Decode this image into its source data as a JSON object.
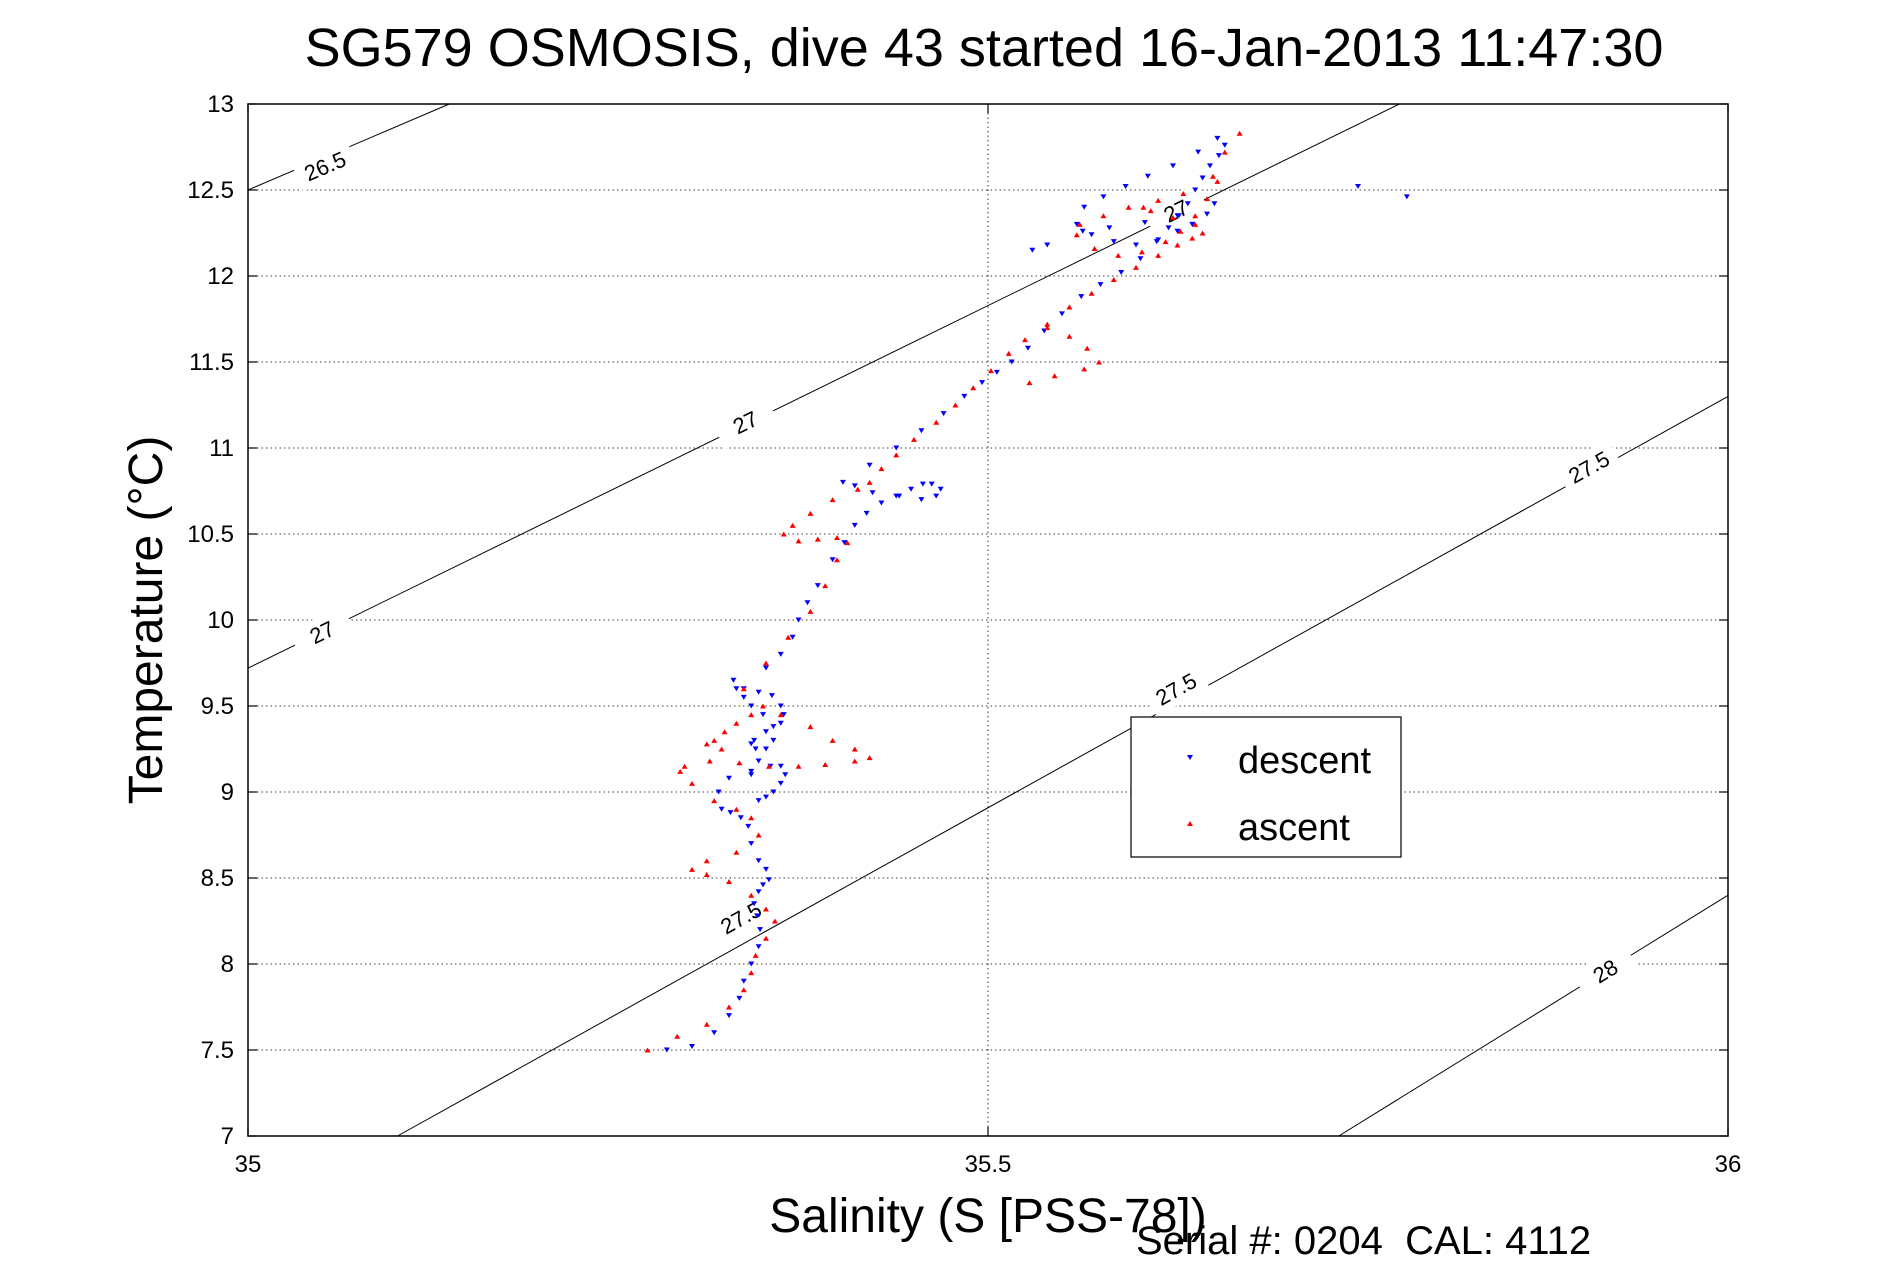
{
  "chart_data": {
    "type": "scatter",
    "title": "SG579 OSMOSIS, dive 43 started 16-Jan-2013 11:47:30",
    "xlabel": "Salinity (S [PSS-78])",
    "ylabel": "Temperature (°C)",
    "footer": "Serial #: 0204  CAL: 4112",
    "xlim": [
      35,
      36
    ],
    "ylim": [
      7,
      13
    ],
    "xticks": [
      35,
      35.5,
      36
    ],
    "xtick_labels": [
      "35",
      "35.5",
      "36"
    ],
    "yticks": [
      7,
      7.5,
      8,
      8.5,
      9,
      9.5,
      10,
      10.5,
      11,
      11.5,
      12,
      12.5,
      13
    ],
    "ytick_labels": [
      "7",
      "7.5",
      "8",
      "8.5",
      "9",
      "9.5",
      "10",
      "10.5",
      "11",
      "11.5",
      "12",
      "12.5",
      "13"
    ],
    "grid": true,
    "legend_position": "center-right",
    "contours": [
      {
        "value": "26.5",
        "points": [
          [
            35.0,
            12.5
          ],
          [
            35.136,
            13.0
          ]
        ],
        "labels": [
          {
            "x": 35.052,
            "y": 12.64
          }
        ]
      },
      {
        "value": "27",
        "points": [
          [
            35.0,
            9.72
          ],
          [
            35.778,
            13.0
          ]
        ],
        "labels": [
          {
            "x": 35.05,
            "y": 9.93
          },
          {
            "x": 35.336,
            "y": 11.15
          },
          {
            "x": 35.627,
            "y": 12.38
          }
        ]
      },
      {
        "value": "27.5",
        "points": [
          [
            35.101,
            7.0
          ],
          [
            36.0,
            11.3
          ]
        ],
        "labels": [
          {
            "x": 35.333,
            "y": 8.27
          },
          {
            "x": 35.627,
            "y": 9.6
          },
          {
            "x": 35.906,
            "y": 10.89
          }
        ]
      },
      {
        "value": "28",
        "points": [
          [
            35.737,
            7.0
          ],
          [
            36.0,
            8.4
          ]
        ],
        "labels": [
          {
            "x": 35.917,
            "y": 7.96
          }
        ]
      }
    ],
    "series": [
      {
        "name": "descent",
        "color": "#0000ff",
        "marker": "triangle-down",
        "x": [
          35.283,
          35.3,
          35.315,
          35.325,
          35.332,
          35.335,
          35.34,
          35.345,
          35.346,
          35.344,
          35.342,
          35.345,
          35.348,
          35.352,
          35.35,
          35.345,
          35.34,
          35.338,
          35.333,
          35.326,
          35.32,
          35.318,
          35.325,
          35.34,
          35.353,
          35.36,
          35.363,
          35.36,
          35.355,
          35.35,
          35.345,
          35.34,
          35.345,
          35.35,
          35.355,
          35.355,
          35.348,
          35.34,
          35.335,
          35.33,
          35.328,
          35.335,
          35.345,
          35.354,
          35.36,
          35.362,
          35.36,
          35.35,
          35.342,
          35.34,
          35.343,
          35.35,
          35.36,
          35.368,
          35.372,
          35.378,
          35.385,
          35.395,
          35.403,
          35.41,
          35.418,
          35.428,
          35.438,
          35.448,
          35.456,
          35.462,
          35.468,
          35.465,
          35.455,
          35.44,
          35.422,
          35.41,
          35.402,
          35.42,
          35.438,
          35.455,
          35.47,
          35.484,
          35.496,
          35.506,
          35.516,
          35.527,
          35.538,
          35.55,
          35.563,
          35.576,
          35.59,
          35.603,
          35.614,
          35.622,
          35.629,
          35.635,
          35.64,
          35.645,
          35.65,
          35.656,
          35.66,
          35.655,
          35.642,
          35.625,
          35.608,
          35.593,
          35.578,
          35.565,
          35.56,
          35.57,
          35.585,
          35.6,
          35.615,
          35.628,
          35.638,
          35.648,
          35.653,
          35.628,
          35.606,
          35.582,
          35.564,
          35.54,
          35.53,
          35.75,
          35.783
        ],
        "y": [
          7.5,
          7.52,
          7.6,
          7.7,
          7.8,
          7.9,
          8.0,
          8.1,
          8.2,
          8.28,
          8.35,
          8.42,
          8.46,
          8.49,
          8.55,
          8.6,
          8.7,
          8.8,
          8.85,
          8.88,
          8.9,
          9.0,
          9.08,
          9.12,
          9.15,
          9.15,
          9.1,
          9.05,
          9.0,
          8.97,
          8.95,
          9.1,
          9.18,
          9.25,
          9.3,
          9.38,
          9.45,
          9.5,
          9.55,
          9.6,
          9.65,
          9.6,
          9.58,
          9.56,
          9.5,
          9.45,
          9.4,
          9.35,
          9.3,
          9.28,
          9.25,
          9.72,
          9.8,
          9.9,
          10.0,
          10.1,
          10.2,
          10.35,
          10.45,
          10.55,
          10.62,
          10.68,
          10.72,
          10.76,
          10.79,
          10.79,
          10.76,
          10.72,
          10.7,
          10.72,
          10.74,
          10.78,
          10.8,
          10.9,
          11.0,
          11.1,
          11.2,
          11.3,
          11.38,
          11.44,
          11.5,
          11.58,
          11.68,
          11.78,
          11.88,
          11.95,
          12.02,
          12.1,
          12.2,
          12.28,
          12.35,
          12.42,
          12.5,
          12.57,
          12.64,
          12.7,
          12.76,
          12.8,
          12.72,
          12.64,
          12.58,
          12.52,
          12.46,
          12.4,
          12.3,
          12.24,
          12.2,
          12.18,
          12.21,
          12.26,
          12.3,
          12.36,
          12.42,
          12.35,
          12.31,
          12.28,
          12.26,
          12.18,
          12.15,
          12.52,
          12.46
        ]
      },
      {
        "name": "ascent",
        "color": "#ff0000",
        "marker": "triangle-up",
        "x": [
          35.27,
          35.29,
          35.31,
          35.325,
          35.335,
          35.34,
          35.343,
          35.35,
          35.356,
          35.35,
          35.34,
          35.325,
          35.31,
          35.3,
          35.31,
          35.33,
          35.345,
          35.34,
          35.33,
          35.315,
          35.3,
          35.292,
          35.295,
          35.312,
          35.332,
          35.352,
          35.372,
          35.39,
          35.41,
          35.42,
          35.41,
          35.395,
          35.38,
          35.36,
          35.348,
          35.34,
          35.33,
          35.322,
          35.315,
          35.31,
          35.32,
          35.335,
          35.35,
          35.365,
          35.38,
          35.39,
          35.398,
          35.405,
          35.398,
          35.385,
          35.372,
          35.362,
          35.368,
          35.38,
          35.395,
          35.412,
          35.42,
          35.428,
          35.438,
          35.45,
          35.465,
          35.478,
          35.49,
          35.502,
          35.514,
          35.525,
          35.54,
          35.555,
          35.567,
          35.575,
          35.565,
          35.545,
          35.528,
          35.54,
          35.555,
          35.57,
          35.585,
          35.6,
          35.615,
          35.628,
          35.638,
          35.645,
          35.64,
          35.625,
          35.61,
          35.595,
          35.578,
          35.562,
          35.56,
          35.572,
          35.588,
          35.604,
          35.62,
          35.63,
          35.64,
          35.648,
          35.652,
          35.66,
          35.67,
          35.655,
          35.632,
          35.615,
          35.605
        ],
        "y": [
          7.5,
          7.58,
          7.65,
          7.75,
          7.85,
          7.95,
          8.05,
          8.15,
          8.25,
          8.32,
          8.4,
          8.48,
          8.52,
          8.55,
          8.6,
          8.65,
          8.75,
          8.85,
          8.9,
          8.95,
          9.05,
          9.12,
          9.15,
          9.18,
          9.17,
          9.15,
          9.15,
          9.16,
          9.18,
          9.2,
          9.25,
          9.3,
          9.38,
          9.45,
          9.5,
          9.45,
          9.4,
          9.35,
          9.3,
          9.28,
          9.25,
          9.6,
          9.75,
          9.9,
          10.05,
          10.2,
          10.35,
          10.45,
          10.48,
          10.47,
          10.46,
          10.5,
          10.55,
          10.62,
          10.7,
          10.76,
          10.8,
          10.88,
          10.96,
          11.05,
          11.15,
          11.25,
          11.35,
          11.45,
          11.55,
          11.63,
          11.7,
          11.65,
          11.58,
          11.5,
          11.46,
          11.42,
          11.38,
          11.72,
          11.82,
          11.9,
          11.98,
          12.05,
          12.12,
          12.18,
          12.22,
          12.25,
          12.3,
          12.34,
          12.38,
          12.4,
          12.35,
          12.3,
          12.24,
          12.16,
          12.12,
          12.14,
          12.2,
          12.26,
          12.35,
          12.45,
          12.58,
          12.72,
          12.83,
          12.55,
          12.48,
          12.44,
          12.4
        ]
      }
    ]
  }
}
